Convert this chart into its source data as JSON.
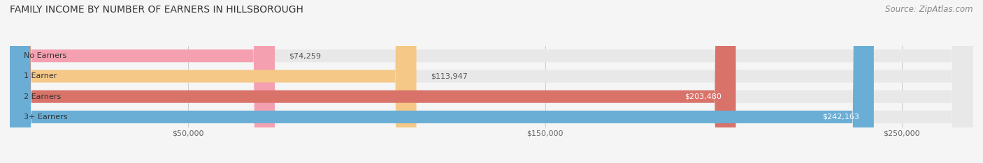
{
  "title": "FAMILY INCOME BY NUMBER OF EARNERS IN HILLSBOROUGH",
  "source": "Source: ZipAtlas.com",
  "categories": [
    "No Earners",
    "1 Earner",
    "2 Earners",
    "3+ Earners"
  ],
  "values": [
    74259,
    113947,
    203480,
    242163
  ],
  "labels": [
    "$74,259",
    "$113,947",
    "$203,480",
    "$242,163"
  ],
  "bar_colors": [
    "#f4a0b0",
    "#f5c888",
    "#d9736a",
    "#6aaed6"
  ],
  "bar_bg_color": "#e8e8e8",
  "label_colors": [
    "#555555",
    "#555555",
    "#ffffff",
    "#ffffff"
  ],
  "xmax": 270000,
  "xticks": [
    50000,
    150000,
    250000
  ],
  "xticklabels": [
    "$50,000",
    "$150,000",
    "$250,000"
  ],
  "bar_height": 0.62,
  "figsize": [
    14.06,
    2.34
  ],
  "dpi": 100,
  "bg_color": "#f5f5f5",
  "title_fontsize": 10,
  "source_fontsize": 8.5,
  "label_fontsize": 8,
  "category_fontsize": 8,
  "xtick_fontsize": 8
}
